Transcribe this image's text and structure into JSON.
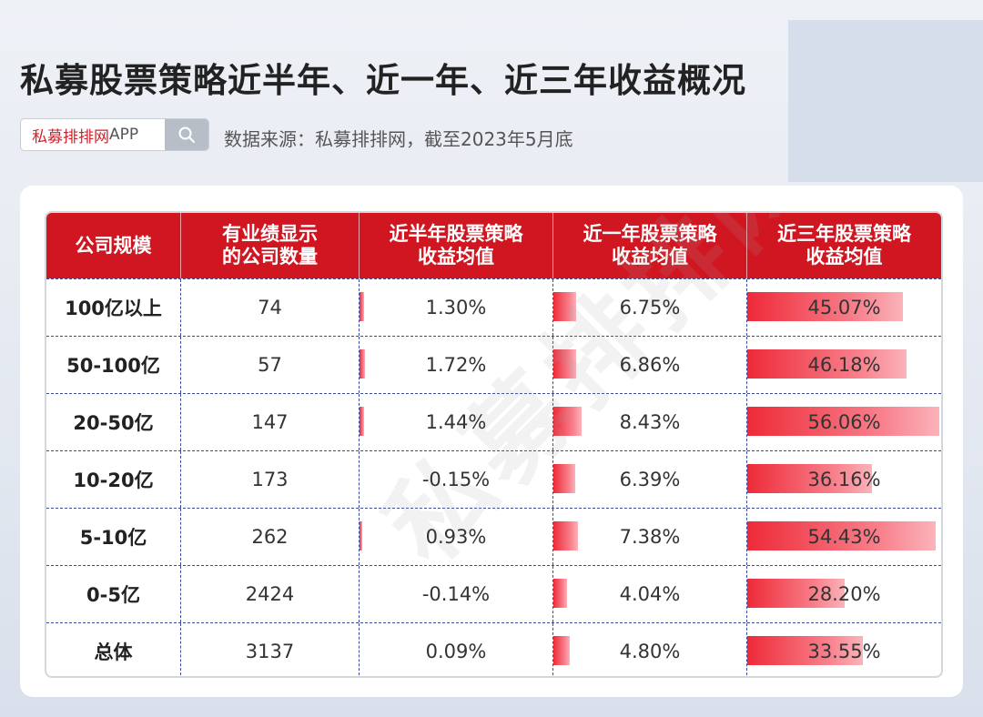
{
  "title": "私募股票策略近半年、近一年、近三年收益概况",
  "search": {
    "brand_red": "私募排排网",
    "brand_suffix": "APP"
  },
  "source": "数据来源：私募排排网，截至2023年5月底",
  "watermark": "私募排排网",
  "colors": {
    "header_red": "#d01721",
    "bar_red": "#ee2a38",
    "brand_red": "#d4202a"
  },
  "table": {
    "headers": [
      "公司规模",
      "有业绩显示\n的公司数量",
      "近半年股票策略\n收益均值",
      "近一年股票策略\n收益均值",
      "近三年股票策略\n收益均值"
    ],
    "rows": [
      {
        "scale": "100亿以上",
        "count": "74",
        "half": "1.30%",
        "one": "6.75%",
        "three": "45.07%"
      },
      {
        "scale": "50-100亿",
        "count": "57",
        "half": "1.72%",
        "one": "6.86%",
        "three": "46.18%"
      },
      {
        "scale": "20-50亿",
        "count": "147",
        "half": "1.44%",
        "one": "8.43%",
        "three": "56.06%"
      },
      {
        "scale": "10-20亿",
        "count": "173",
        "half": "-0.15%",
        "one": "6.39%",
        "three": "36.16%"
      },
      {
        "scale": "5-10亿",
        "count": "262",
        "half": "0.93%",
        "one": "7.38%",
        "three": "54.43%"
      },
      {
        "scale": "0-5亿",
        "count": "2424",
        "half": "-0.14%",
        "one": "4.04%",
        "three": "28.20%"
      },
      {
        "scale": "总体",
        "count": "3137",
        "half": "0.09%",
        "one": "4.80%",
        "three": "33.55%"
      }
    ]
  }
}
